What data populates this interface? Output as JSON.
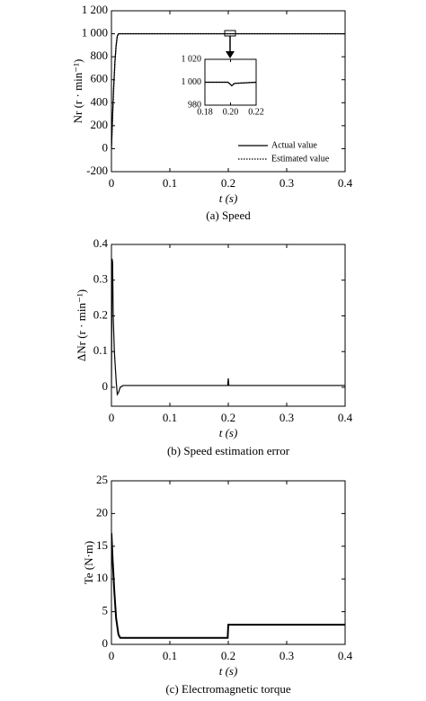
{
  "chart_data": [
    {
      "type": "line",
      "caption": "(a)  Speed",
      "xlabel": "t (s)",
      "ylabel": "Nr (r · min⁻¹)",
      "xlim": [
        0,
        0.4
      ],
      "ylim": [
        -200,
        1200
      ],
      "xticks": [
        0,
        0.1,
        0.2,
        0.3,
        0.4
      ],
      "yticks": [
        -200,
        0,
        200,
        400,
        600,
        800,
        {
          "value": 1000,
          "label": "1 000"
        },
        {
          "value": 1200,
          "label": "1 200"
        }
      ],
      "legend": "lower right",
      "x": [
        0,
        0.002,
        0.004,
        0.006,
        0.008,
        0.01,
        0.012,
        0.015,
        0.2,
        0.4
      ],
      "series": [
        {
          "name": "Actual value",
          "color": "#000000",
          "dash": "solid",
          "values": [
            0,
            300,
            560,
            760,
            900,
            980,
            1000,
            1000,
            1000,
            1000
          ]
        },
        {
          "name": "Estimated value",
          "color": "#000000",
          "dash": "dotted",
          "values": [
            0,
            280,
            540,
            750,
            890,
            975,
            1000,
            1000,
            1000,
            1000
          ]
        }
      ]
    },
    {
      "type": "line",
      "caption": "(b)  Speed estimation error",
      "xlabel": "t (s)",
      "ylabel": "ΔNr (r · min⁻¹)",
      "xlim": [
        0,
        0.4
      ],
      "ylim": [
        -0.053,
        0.4
      ],
      "xticks": [
        0,
        0.1,
        0.2,
        0.3,
        0.4
      ],
      "yticks": [
        0,
        0.1,
        0.2,
        0.3,
        0.4
      ],
      "x": [
        0,
        0.001,
        0.002,
        0.003,
        0.005,
        0.008,
        0.01,
        0.012,
        0.015,
        0.02,
        0.05,
        0.1,
        0.15,
        0.199,
        0.2,
        0.201,
        0.25,
        0.3,
        0.35,
        0.4
      ],
      "series": [
        {
          "color": "#000000",
          "dash": "solid",
          "values": [
            0,
            0.36,
            0.35,
            0.2,
            0.1,
            0.02,
            -0.02,
            -0.015,
            0,
            0.005,
            0.005,
            0.005,
            0.005,
            0.005,
            0.025,
            0.005,
            0.005,
            0.005,
            0.005,
            0.005
          ]
        }
      ]
    },
    {
      "type": "line",
      "caption": "(c)  Electromagnetic torque",
      "xlabel": "t (s)",
      "ylabel": "Te (N·m)",
      "xlim": [
        0,
        0.4
      ],
      "ylim": [
        0,
        25
      ],
      "xticks": [
        0,
        0.1,
        0.2,
        0.3,
        0.4
      ],
      "yticks": [
        0,
        5,
        10,
        15,
        20,
        25
      ],
      "x": [
        0,
        0.002,
        0.005,
        0.008,
        0.012,
        0.015,
        0.1,
        0.199,
        0.2,
        0.3,
        0.4
      ],
      "series": [
        {
          "color": "#000000",
          "dash": "solid",
          "values": [
            17,
            13,
            8,
            4,
            1.5,
            1,
            1,
            1,
            3,
            3,
            3
          ]
        }
      ]
    },
    {
      "type": "line",
      "xlim": [
        0.18,
        0.22
      ],
      "ylim": [
        980,
        1020
      ],
      "xticks": [
        0.18,
        {
          "value": 0.2,
          "label": "0.20"
        },
        0.22
      ],
      "yticks": [
        980,
        {
          "value": 1000,
          "label": "1 000"
        },
        {
          "value": 1020,
          "label": "1 020"
        }
      ],
      "x": [
        0.18,
        0.198,
        0.2,
        0.201,
        0.203,
        0.22
      ],
      "series": [
        {
          "color": "#000000",
          "dash": "solid",
          "values": [
            1000,
            1000,
            998,
            997,
            999,
            1000
          ]
        },
        {
          "color": "#000000",
          "dash": "dotted",
          "values": [
            1000,
            1000,
            998,
            997,
            999,
            1000
          ]
        }
      ]
    }
  ]
}
